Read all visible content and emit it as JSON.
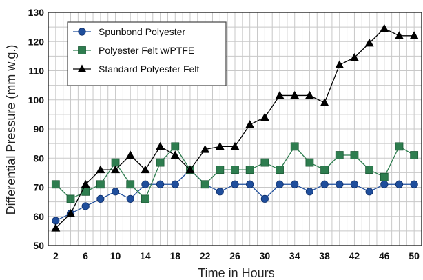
{
  "chart_data": {
    "type": "line",
    "title": "",
    "xlabel": "Time in Hours",
    "ylabel": "Differential Pressure (mm w.g.)",
    "xlim": [
      1,
      51
    ],
    "ylim": [
      50,
      130
    ],
    "x_ticks": [
      2,
      6,
      10,
      14,
      18,
      22,
      26,
      30,
      34,
      38,
      42,
      46,
      50
    ],
    "y_ticks": [
      50,
      60,
      70,
      80,
      90,
      100,
      110,
      120,
      130
    ],
    "grid": true,
    "legend_position": "top-left",
    "x": [
      2,
      4,
      6,
      8,
      10,
      12,
      14,
      16,
      18,
      20,
      22,
      24,
      26,
      28,
      30,
      32,
      34,
      36,
      38,
      40,
      42,
      44,
      46,
      48,
      50
    ],
    "series": [
      {
        "name": "Spunbond Polyester",
        "marker": "circle",
        "color": "#1f4e9c",
        "values": [
          58.5,
          61,
          63.5,
          66,
          68.5,
          66,
          71,
          71,
          71,
          76,
          71,
          68.5,
          71,
          71,
          66,
          71,
          71,
          68.5,
          71,
          71,
          71,
          68.5,
          71,
          71,
          71
        ]
      },
      {
        "name": "Polyester Felt w/PTFE",
        "marker": "square",
        "color": "#2e7d4f",
        "values": [
          71,
          66,
          68.5,
          71,
          78.5,
          71,
          66,
          78.5,
          84,
          76,
          71,
          76,
          76,
          76,
          78.5,
          76,
          84,
          78.5,
          76,
          81,
          81,
          76,
          73.5,
          84,
          81
        ]
      },
      {
        "name": "Standard Polyester Felt",
        "marker": "triangle",
        "color": "#000000",
        "values": [
          56,
          61,
          71,
          76,
          76,
          81,
          76,
          84,
          81,
          76,
          83,
          84,
          84,
          91.5,
          94,
          101.5,
          101.5,
          101.5,
          99,
          112,
          114.5,
          119.5,
          124.5,
          122,
          122
        ]
      }
    ]
  }
}
